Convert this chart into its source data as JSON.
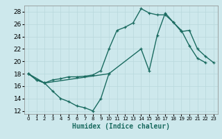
{
  "xlabel": "Humidex (Indice chaleur)",
  "ylabel": "",
  "bg_color": "#cde8ec",
  "line_color": "#1a6b60",
  "grid_color": "#b8d8dc",
  "xlim": [
    -0.5,
    23.5
  ],
  "ylim": [
    11.5,
    29.0
  ],
  "yticks": [
    12,
    14,
    16,
    18,
    20,
    22,
    24,
    26,
    28
  ],
  "xticks": [
    0,
    1,
    2,
    3,
    4,
    5,
    6,
    7,
    8,
    9,
    10,
    11,
    12,
    13,
    14,
    15,
    16,
    17,
    18,
    19,
    20,
    21,
    22,
    23
  ],
  "line1_x": [
    0,
    1,
    2,
    3,
    4,
    5,
    6,
    7,
    8,
    9,
    10,
    11,
    12,
    13,
    14,
    15,
    16,
    17,
    18,
    19,
    20,
    21,
    22
  ],
  "line1_y": [
    18.0,
    17.0,
    16.5,
    17.0,
    17.2,
    17.5,
    17.5,
    17.6,
    17.8,
    18.5,
    22.0,
    25.0,
    25.5,
    26.2,
    28.5,
    27.8,
    27.5,
    27.5,
    26.3,
    25.0,
    22.5,
    20.5,
    19.8
  ],
  "line2_x": [
    0,
    1,
    2,
    3,
    4,
    5,
    6,
    7,
    8,
    9,
    10
  ],
  "line2_y": [
    18.0,
    17.0,
    16.5,
    15.2,
    14.0,
    13.5,
    12.8,
    12.5,
    12.0,
    14.0,
    18.0
  ],
  "line3_x": [
    0,
    2,
    10,
    14,
    15,
    16,
    17,
    18,
    19,
    20,
    21,
    22,
    23
  ],
  "line3_y": [
    18.0,
    16.5,
    18.0,
    22.0,
    18.5,
    24.2,
    27.8,
    26.3,
    24.8,
    25.0,
    22.0,
    20.8,
    19.8
  ]
}
